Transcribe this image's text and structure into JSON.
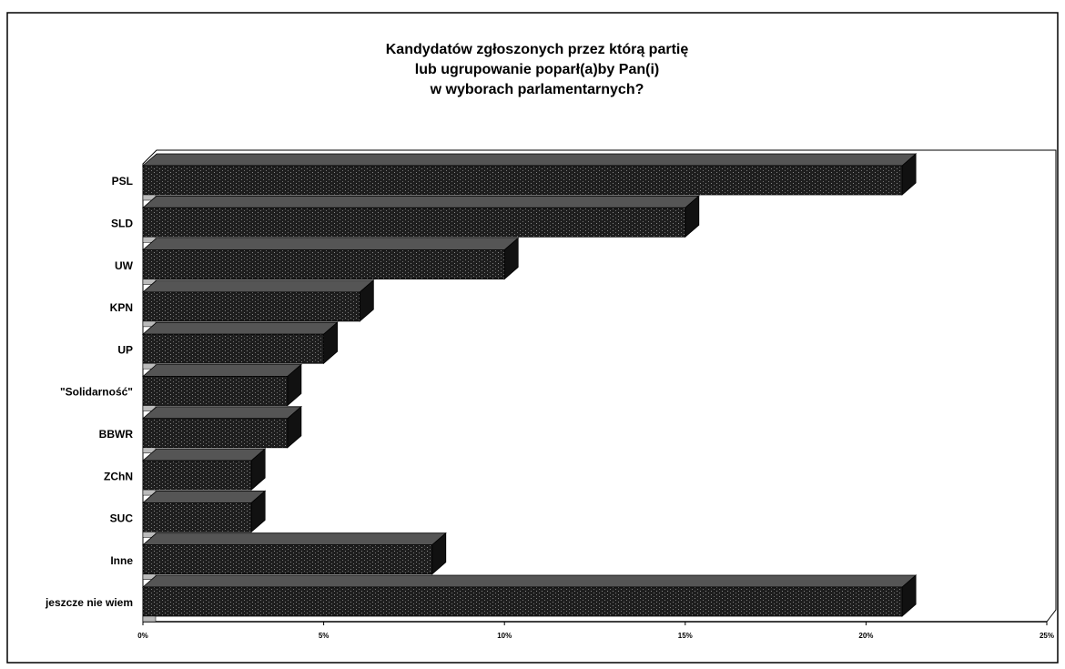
{
  "chart_data": {
    "type": "bar",
    "orientation": "horizontal",
    "title": [
      "Kandydatów zgłoszonych  przez którą partię",
      "lub ugrupowanie poparł(a)by Pan(i)",
      "w wyborach parlamentarnych?"
    ],
    "categories": [
      "PSL",
      "SLD",
      "UW",
      "KPN",
      "UP",
      "\"Solidarność\"",
      "BBWR",
      "ZChN",
      "SUC",
      "Inne",
      "jeszcze nie wiem"
    ],
    "values": [
      21,
      15,
      10,
      6,
      5,
      4,
      4,
      3,
      3,
      8,
      21
    ],
    "color": "#1e1e1e",
    "xlim": [
      0,
      25
    ],
    "xticks": [
      {
        "value": 0,
        "label": "0%"
      },
      {
        "value": 5,
        "label": "5%"
      },
      {
        "value": 10,
        "label": "10%"
      },
      {
        "value": 15,
        "label": "15%"
      },
      {
        "value": 20,
        "label": "20%"
      },
      {
        "value": 25,
        "label": "25%"
      }
    ]
  }
}
